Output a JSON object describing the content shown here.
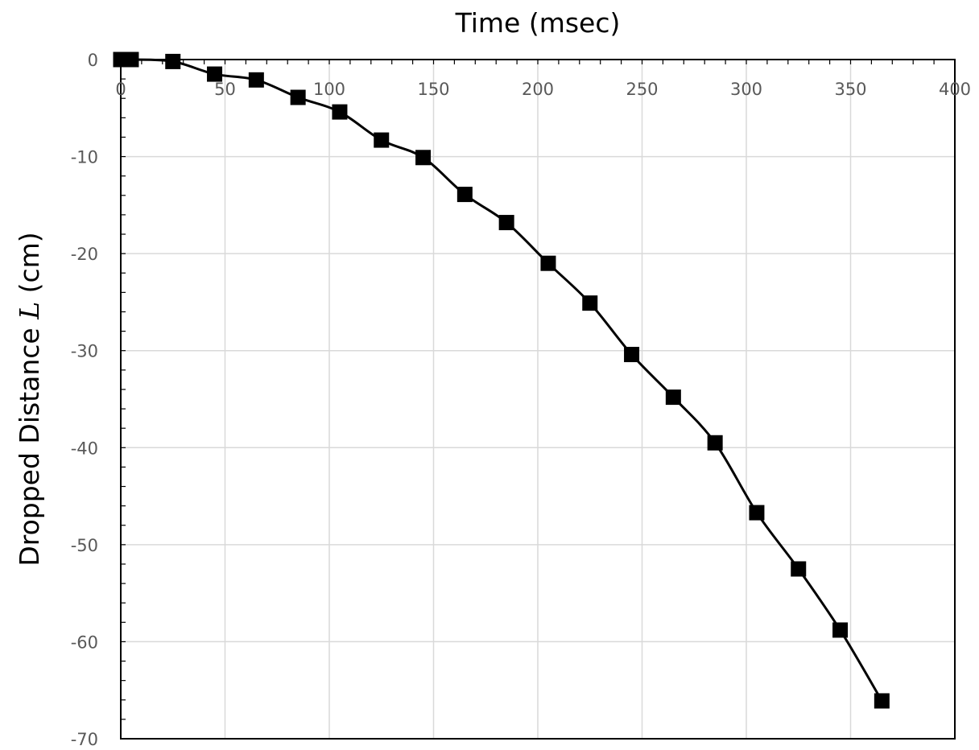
{
  "chart_data": {
    "type": "scatter",
    "title": "",
    "xlabel": "Time (msec)",
    "ylabel_parts": [
      "Dropped Distance ",
      "L",
      " (cm)"
    ],
    "xlim": [
      0,
      400
    ],
    "ylim": [
      -70,
      0
    ],
    "x_ticks": [
      0,
      50,
      100,
      150,
      200,
      250,
      300,
      350,
      400
    ],
    "y_ticks": [
      0,
      -10,
      -20,
      -30,
      -40,
      -50,
      -60,
      -70
    ],
    "x_tick_labels": [
      "0",
      "50",
      "100",
      "150",
      "200",
      "250",
      "300",
      "350",
      "400"
    ],
    "y_tick_labels": [
      "0",
      "-10",
      "-20",
      "-30",
      "-40",
      "-50",
      "-60",
      "-70"
    ],
    "x_axis_position": "top",
    "grid": true,
    "legend": "none",
    "marker": "square",
    "line": "smooth",
    "colors": {
      "series": "#000000",
      "grid": "#d9d9d9",
      "tick_text": "#595959"
    },
    "series": [
      {
        "x": [
          0,
          5,
          25,
          45,
          65,
          85,
          105,
          125,
          145,
          165,
          185,
          205,
          225,
          245,
          265,
          285,
          305,
          325,
          345,
          365
        ],
        "y": [
          0,
          0,
          -0.2,
          -1.5,
          -2.1,
          -3.9,
          -5.4,
          -8.3,
          -10.1,
          -13.9,
          -16.8,
          -21.0,
          -25.1,
          -30.4,
          -34.8,
          -39.5,
          -46.7,
          -52.5,
          -58.8,
          -66.1
        ]
      }
    ]
  }
}
